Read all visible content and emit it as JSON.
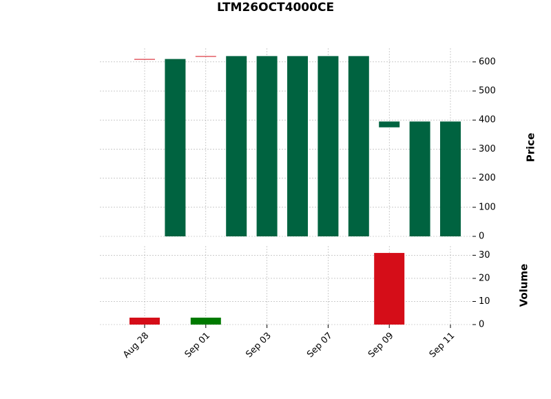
{
  "chart_data": {
    "type": "candlestick",
    "title": "LTM26OCT4000CE",
    "categories": [
      "Aug 28",
      null,
      "Sep 01",
      null,
      "Sep 03",
      null,
      "Sep 07",
      null,
      "Sep 09",
      null,
      "Sep 11"
    ],
    "open": [
      610,
      0,
      620,
      0,
      0,
      0,
      0,
      0,
      375,
      0,
      0
    ],
    "close": [
      610,
      610,
      620,
      620,
      620,
      620,
      620,
      620,
      395,
      395,
      395
    ],
    "volume": [
      3,
      0,
      3,
      0,
      0,
      0,
      0,
      0,
      31,
      0,
      0
    ],
    "up_color": "#006340",
    "down_color": "#d50d18",
    "volume_up_color": "#007a00",
    "ylabel": "Price",
    "ylim": [
      0,
      647
    ],
    "yticks": [
      0,
      100,
      200,
      300,
      400,
      500,
      600
    ],
    "volume_label": "Volume",
    "volume_ylim": [
      0,
      34
    ],
    "volume_yticks": [
      0,
      10,
      20,
      30
    ],
    "grid": true
  }
}
